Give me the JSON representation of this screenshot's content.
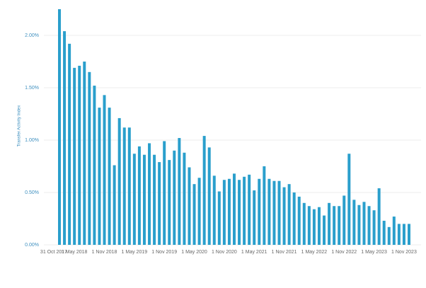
{
  "chart_data": {
    "type": "bar",
    "y_label": "Transfer Activity Index",
    "color": "#2a9fcc",
    "grid": true,
    "ylim": [
      0,
      2.25
    ],
    "yticks": [
      {
        "value": 0,
        "label": "0.00%"
      },
      {
        "value": 0.5,
        "label": "0.50%"
      },
      {
        "value": 1,
        "label": "1.00%"
      },
      {
        "value": 1.5,
        "label": "1.50%"
      },
      {
        "value": 2,
        "label": "2.00%"
      }
    ],
    "categories": [
      "31 Oct 2017",
      null,
      null,
      "1 May 2018",
      null,
      null,
      null,
      null,
      null,
      "1 Nov 2018",
      null,
      null,
      null,
      null,
      null,
      "1 May 2019",
      null,
      null,
      null,
      null,
      null,
      "1 Nov 2019",
      null,
      null,
      null,
      null,
      null,
      "1 May 2020",
      null,
      null,
      null,
      null,
      null,
      "1 Nov 2020",
      null,
      null,
      null,
      null,
      null,
      "1 May 2021",
      null,
      null,
      null,
      null,
      null,
      "1 Nov 2021",
      null,
      null,
      null,
      null,
      null,
      "1 May 2022",
      null,
      null,
      null,
      null,
      null,
      "1 Nov 2022",
      null,
      null,
      null,
      null,
      null,
      "1 May 2023",
      null,
      null,
      null,
      null,
      null,
      "1 Nov 2023",
      null
    ],
    "values": [
      2.25,
      2.04,
      1.92,
      1.69,
      1.71,
      1.75,
      1.65,
      1.52,
      1.31,
      1.43,
      1.31,
      0.76,
      1.21,
      1.12,
      1.12,
      0.87,
      0.94,
      0.86,
      0.97,
      0.86,
      0.79,
      0.99,
      0.81,
      0.9,
      1.02,
      0.88,
      0.74,
      0.58,
      0.64,
      1.04,
      0.93,
      0.66,
      0.51,
      0.62,
      0.63,
      0.68,
      0.62,
      0.65,
      0.67,
      0.52,
      0.63,
      0.75,
      0.63,
      0.61,
      0.61,
      0.55,
      0.58,
      0.5,
      0.46,
      0.4,
      0.37,
      0.34,
      0.36,
      0.28,
      0.4,
      0.37,
      0.37,
      0.47,
      0.87,
      0.43,
      0.38,
      0.41,
      0.37,
      0.33,
      0.54,
      0.23,
      0.17,
      0.27,
      0.2,
      0.2,
      0.2
    ]
  }
}
